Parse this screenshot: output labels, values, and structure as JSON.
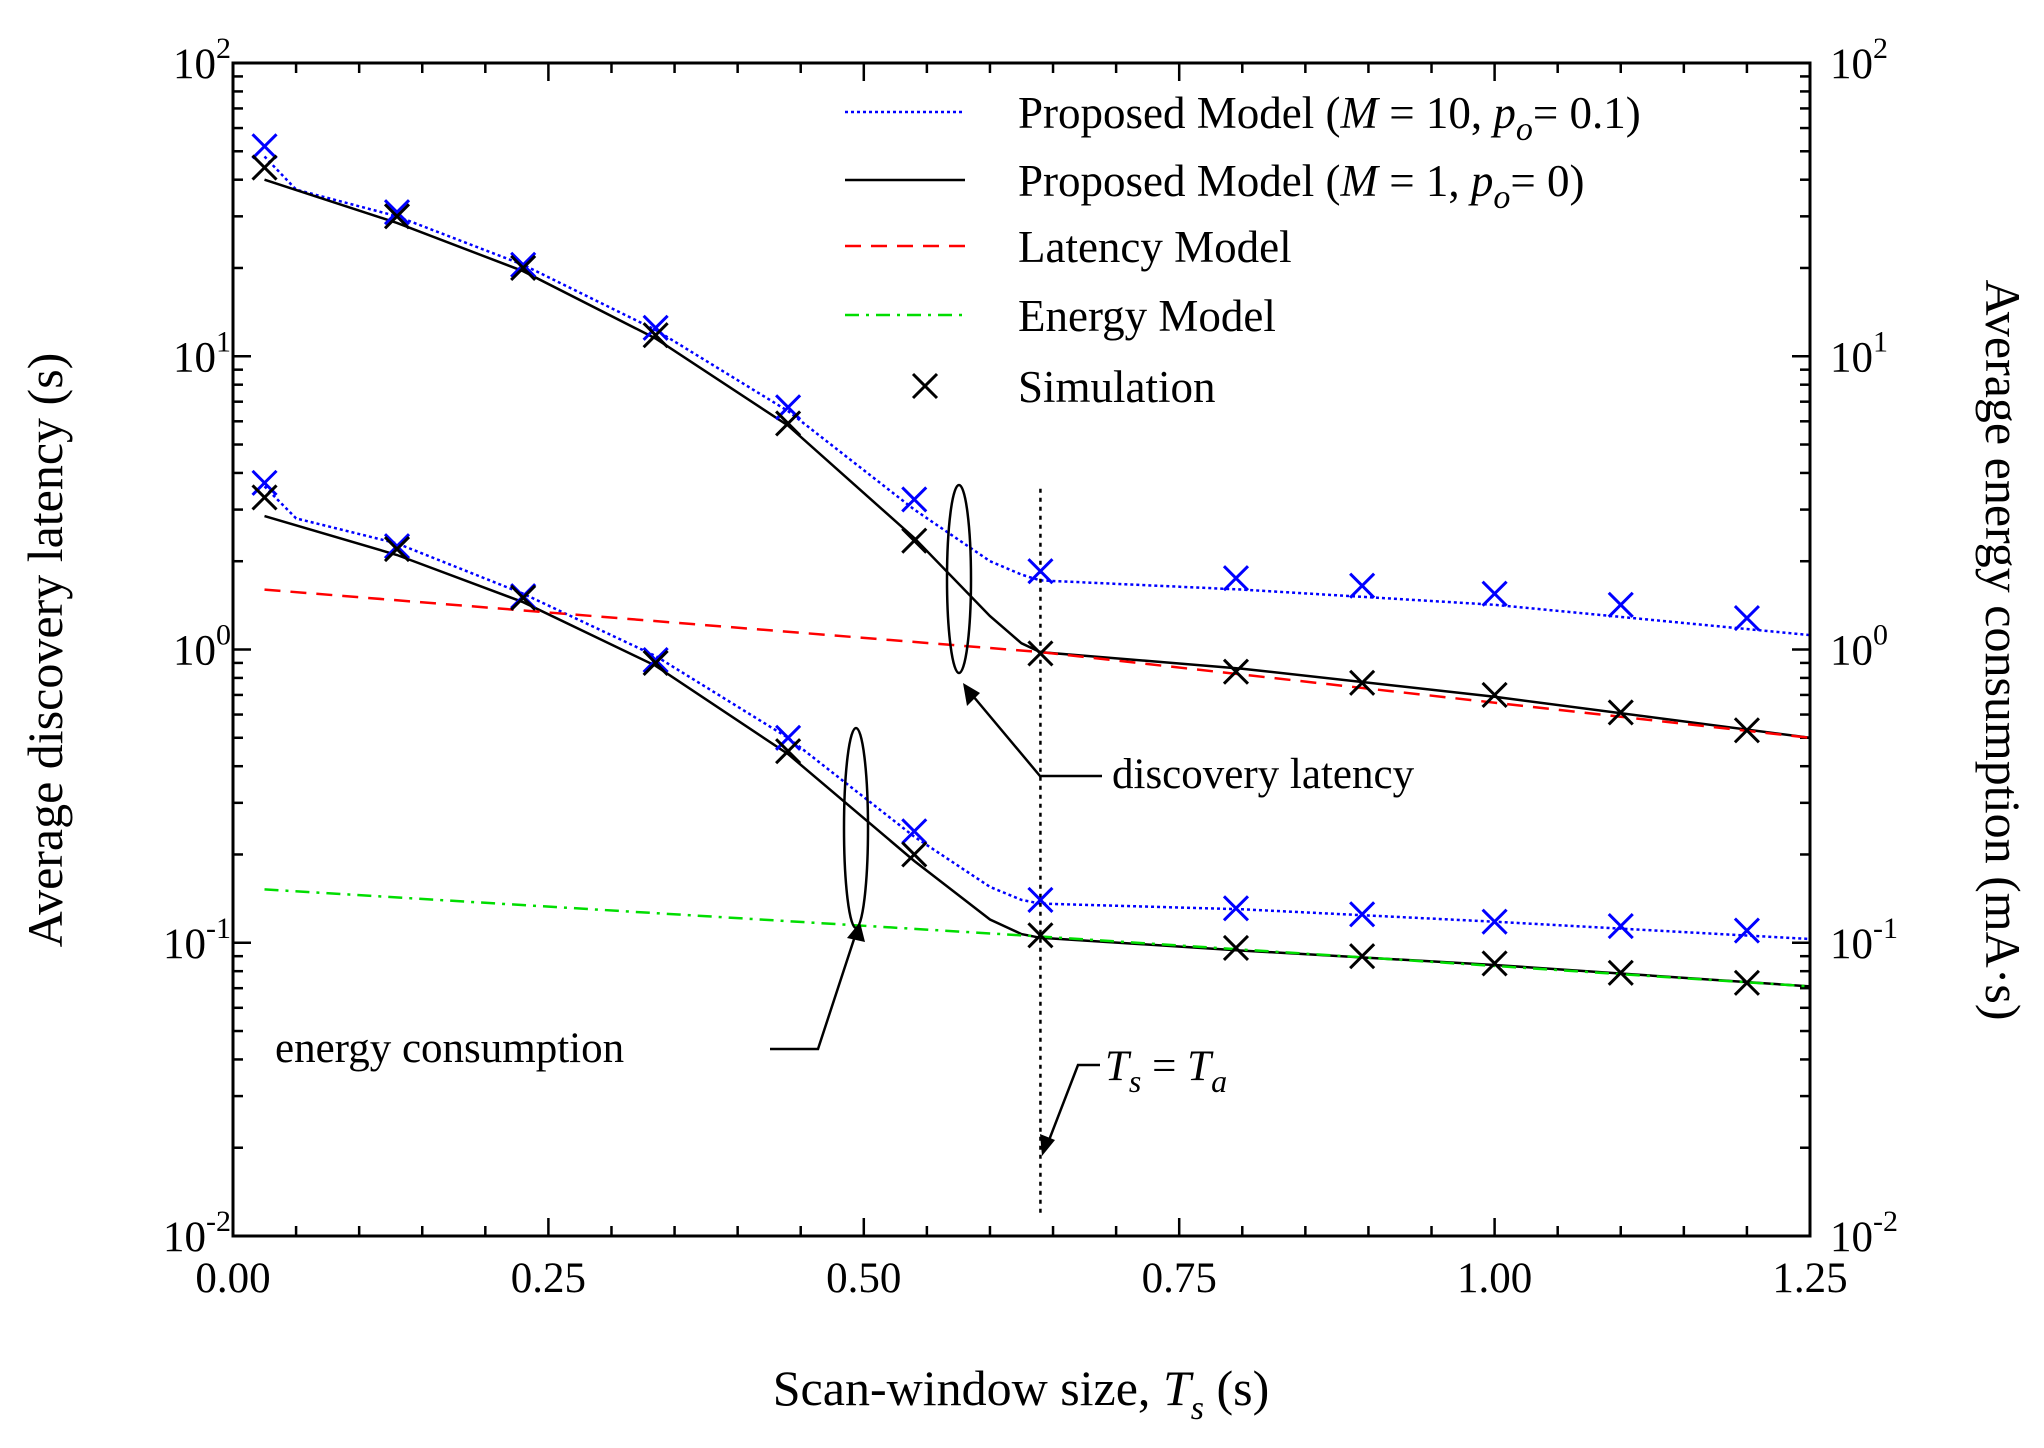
{
  "chart_data": {
    "type": "line",
    "xlabel": {
      "text": "Scan-window size, ",
      "var": "T",
      "sub": "s",
      "unit": " (s)"
    },
    "ylabel_left": "Average discovery latency (s)",
    "ylabel_right": "Average energy consumption (mA·s)",
    "xlim": [
      0.0,
      1.25
    ],
    "ylim": [
      0.01,
      100
    ],
    "yscale": "log",
    "x_ticks": [
      0.0,
      0.25,
      0.5,
      0.75,
      1.0,
      1.25
    ],
    "x_tick_labels": [
      "0.00",
      "0.25",
      "0.50",
      "0.75",
      "1.00",
      "1.25"
    ],
    "y_ticks": [
      {
        "value": 100,
        "base": "10",
        "exp": "2"
      },
      {
        "value": 10,
        "base": "10",
        "exp": "1"
      },
      {
        "value": 1,
        "base": "10",
        "exp": "0"
      },
      {
        "value": 0.1,
        "base": "10",
        "exp": "-1"
      },
      {
        "value": 0.01,
        "base": "10",
        "exp": "-2"
      }
    ],
    "series": [
      {
        "name": "Proposed Model (M = 10, po = 0.1) — latency",
        "style": "dotted",
        "color": "#0000ff",
        "x": [
          0.025,
          0.05,
          0.13,
          0.23,
          0.335,
          0.44,
          0.54,
          0.6,
          0.625,
          0.64,
          0.8,
          1.0,
          1.25
        ],
        "y": [
          48,
          37,
          30,
          20.5,
          12.3,
          6.5,
          3.0,
          2.0,
          1.8,
          1.72,
          1.6,
          1.42,
          1.12
        ]
      },
      {
        "name": "Proposed Model (M = 1, po = 0) — latency",
        "style": "solid",
        "color": "#000000",
        "x": [
          0.025,
          0.13,
          0.23,
          0.335,
          0.44,
          0.54,
          0.6,
          0.625,
          0.64,
          0.8,
          1.0,
          1.25
        ],
        "y": [
          40,
          28.5,
          19.5,
          11.5,
          5.8,
          2.4,
          1.3,
          1.05,
          0.98,
          0.86,
          0.69,
          0.5
        ]
      },
      {
        "name": "Proposed Model (M = 10, po = 0.1) — energy",
        "style": "dotted",
        "color": "#0000ff",
        "x": [
          0.025,
          0.05,
          0.13,
          0.23,
          0.335,
          0.44,
          0.54,
          0.6,
          0.625,
          0.64,
          0.8,
          1.0,
          1.25
        ],
        "y": [
          3.6,
          2.8,
          2.3,
          1.55,
          0.95,
          0.5,
          0.23,
          0.155,
          0.14,
          0.136,
          0.13,
          0.118,
          0.103
        ]
      },
      {
        "name": "Proposed Model (M = 1, po = 0) — energy",
        "style": "solid",
        "color": "#000000",
        "x": [
          0.025,
          0.13,
          0.23,
          0.335,
          0.44,
          0.54,
          0.6,
          0.625,
          0.64,
          0.8,
          1.0,
          1.25
        ],
        "y": [
          2.85,
          2.1,
          1.45,
          0.88,
          0.44,
          0.19,
          0.12,
          0.107,
          0.104,
          0.094,
          0.084,
          0.071
        ]
      },
      {
        "name": "Latency Model",
        "style": "dashed",
        "color": "#ff0000",
        "x": [
          0.025,
          0.64,
          1.25
        ],
        "y": [
          1.6,
          0.98,
          0.5
        ]
      },
      {
        "name": "Energy Model",
        "style": "dashdot",
        "color": "#00dd00",
        "x": [
          0.025,
          0.64,
          1.25
        ],
        "y": [
          0.152,
          0.105,
          0.071
        ]
      }
    ],
    "simulation": [
      {
        "name": "Simulation (M = 10, po = 0.1) — latency",
        "color": "#0000ff",
        "x": [
          0.025,
          0.13,
          0.23,
          0.335,
          0.44,
          0.54,
          0.64,
          0.795,
          0.895,
          1.0,
          1.1,
          1.2
        ],
        "y": [
          52,
          31,
          20.5,
          12.5,
          6.7,
          3.25,
          1.85,
          1.75,
          1.65,
          1.55,
          1.42,
          1.28
        ]
      },
      {
        "name": "Simulation (M = 1, po = 0) — latency",
        "color": "#000000",
        "x": [
          0.025,
          0.13,
          0.23,
          0.335,
          0.44,
          0.54,
          0.64,
          0.795,
          0.895,
          1.0,
          1.1,
          1.2
        ],
        "y": [
          44,
          30,
          20,
          11.8,
          5.9,
          2.35,
          0.97,
          0.84,
          0.77,
          0.7,
          0.61,
          0.53
        ]
      },
      {
        "name": "Simulation (M = 10, po = 0.1) — energy",
        "color": "#0000ff",
        "x": [
          0.025,
          0.13,
          0.23,
          0.335,
          0.44,
          0.54,
          0.64,
          0.795,
          0.895,
          1.0,
          1.1,
          1.2
        ],
        "y": [
          3.7,
          2.25,
          1.52,
          0.92,
          0.5,
          0.24,
          0.14,
          0.131,
          0.125,
          0.118,
          0.114,
          0.11
        ]
      },
      {
        "name": "Simulation (M = 1, po = 0) — energy",
        "color": "#000000",
        "x": [
          0.025,
          0.13,
          0.23,
          0.335,
          0.44,
          0.54,
          0.64,
          0.795,
          0.895,
          1.0,
          1.1,
          1.2
        ],
        "y": [
          3.3,
          2.2,
          1.5,
          0.9,
          0.45,
          0.2,
          0.106,
          0.096,
          0.09,
          0.085,
          0.079,
          0.073
        ]
      }
    ],
    "vertical_line": {
      "x": 0.64,
      "y_from": 0.012,
      "y_to": 3.6,
      "style": "dotted"
    },
    "legend": {
      "position": "top-right",
      "entries": [
        {
          "label_pre": "Proposed Model (",
          "var1": "M",
          "mid1": " = 10, ",
          "var2": "p",
          "sub2": "o",
          "tail": "= 0.1)",
          "style": "dotted",
          "color": "#0000ff",
          "marker": false
        },
        {
          "label_pre": "Proposed Model (",
          "var1": "M",
          "mid1": " = 1, ",
          "var2": "p",
          "sub2": "o",
          "tail": "= 0)",
          "style": "solid",
          "color": "#000000",
          "marker": false
        },
        {
          "label": "Latency Model",
          "style": "dashed",
          "color": "#ff0000",
          "marker": false
        },
        {
          "label": "Energy Model",
          "style": "dashdot",
          "color": "#00dd00",
          "marker": false
        },
        {
          "label": "Simulation",
          "style": "none",
          "color": "#000000",
          "marker": true
        }
      ]
    },
    "annotations": {
      "discovery": "discovery latency",
      "energy": "energy consumption",
      "ts_var": "T",
      "ts_sub": "s",
      "ts_eq": " = ",
      "ta_var": "T",
      "ta_sub": "a"
    }
  }
}
